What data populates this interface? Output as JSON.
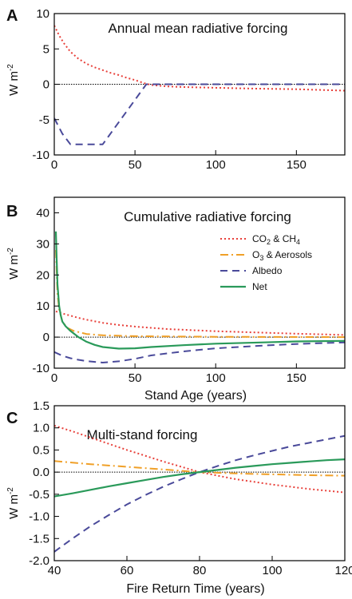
{
  "colors": {
    "co2_ch4": "#e8403a",
    "o3_aerosols": "#f0a028",
    "albedo": "#4a4a9a",
    "net": "#2a9a5a"
  },
  "chart_data": [
    {
      "type": "line",
      "panel_letter": "A",
      "title": "Annual mean radiative forcing",
      "xlabel": "",
      "ylabel": "W m",
      "ylabel_sup": "-2",
      "xlim": [
        0,
        180
      ],
      "ylim": [
        -10,
        10
      ],
      "xticks": [
        0,
        50,
        100,
        150
      ],
      "yticks": [
        -10,
        -5,
        0,
        5,
        10
      ],
      "zero_line": true,
      "series": [
        {
          "key": "co2_ch4",
          "style": "dotted",
          "x": [
            0,
            3,
            6,
            10,
            15,
            20,
            25,
            30,
            35,
            40,
            45,
            50,
            55,
            60,
            70,
            80,
            100,
            120,
            150,
            180
          ],
          "y": [
            8.3,
            6.9,
            5.8,
            4.6,
            3.6,
            2.9,
            2.4,
            2.0,
            1.6,
            1.3,
            0.9,
            0.6,
            0.2,
            -0.1,
            -0.3,
            -0.4,
            -0.5,
            -0.6,
            -0.7,
            -0.9
          ]
        },
        {
          "key": "albedo",
          "style": "dashed",
          "x": [
            0,
            5,
            10,
            30,
            57,
            180
          ],
          "y": [
            -4.8,
            -7.0,
            -8.5,
            -8.5,
            0,
            0
          ]
        }
      ]
    },
    {
      "type": "line",
      "panel_letter": "B",
      "title": "Cumulative radiative forcing",
      "xlabel": "Stand Age (years)",
      "ylabel": "W m",
      "ylabel_sup": "-2",
      "xlim": [
        0,
        180
      ],
      "ylim": [
        -10,
        45
      ],
      "xticks": [
        0,
        50,
        100,
        150
      ],
      "yticks": [
        -10,
        0,
        10,
        20,
        30,
        40
      ],
      "zero_line": true,
      "legend": {
        "placement": "right",
        "entries": [
          {
            "key": "co2_ch4",
            "style": "dotted",
            "label": "CO",
            "sub1": "2",
            "mid": " & CH",
            "sub2": "4"
          },
          {
            "key": "o3_aerosols",
            "style": "dashdot",
            "label": "O",
            "sub1": "3",
            "mid": " & Aerosols",
            "sub2": ""
          },
          {
            "key": "albedo",
            "style": "dashed",
            "label": "Albedo",
            "sub1": "",
            "mid": "",
            "sub2": ""
          },
          {
            "key": "net",
            "style": "solid",
            "label": "Net",
            "sub1": "",
            "mid": "",
            "sub2": ""
          }
        ]
      },
      "series": [
        {
          "key": "co2_ch4",
          "style": "dotted",
          "x": [
            1,
            2,
            4,
            7,
            10,
            15,
            20,
            30,
            40,
            50,
            70,
            100,
            150,
            180
          ],
          "y": [
            8.3,
            8.1,
            7.8,
            7.3,
            6.9,
            6.2,
            5.6,
            4.6,
            3.9,
            3.4,
            2.6,
            1.9,
            1.1,
            0.7
          ]
        },
        {
          "key": "o3_aerosols",
          "style": "dashdot",
          "x": [
            1,
            2,
            3,
            5,
            8,
            12,
            20,
            30,
            50,
            100,
            180
          ],
          "y": [
            28,
            14,
            9,
            5,
            3,
            2,
            1,
            0.6,
            0.3,
            0.1,
            0
          ]
        },
        {
          "key": "albedo",
          "style": "dashed",
          "x": [
            0,
            5,
            10,
            15,
            20,
            30,
            40,
            50,
            60,
            80,
            100,
            130,
            150,
            180
          ],
          "y": [
            -4.8,
            -6.0,
            -6.8,
            -7.3,
            -7.7,
            -8.2,
            -7.8,
            -7.0,
            -5.9,
            -4.6,
            -3.6,
            -2.7,
            -2.2,
            -1.7
          ]
        },
        {
          "key": "net",
          "style": "solid",
          "x": [
            1,
            1.5,
            2,
            3,
            4,
            5,
            7,
            10,
            15,
            20,
            25,
            30,
            40,
            50,
            60,
            80,
            100,
            130,
            150,
            180
          ],
          "y": [
            34,
            25,
            17,
            10,
            7,
            5,
            3.5,
            2,
            0,
            -1.5,
            -2.5,
            -3.2,
            -3.7,
            -3.6,
            -3.2,
            -2.6,
            -2.1,
            -1.7,
            -1.4,
            -1.2
          ]
        }
      ]
    },
    {
      "type": "line",
      "panel_letter": "C",
      "title": "Multi-stand forcing",
      "xlabel": "Fire Return Time (years)",
      "ylabel": "W m",
      "ylabel_sup": "-2",
      "xlim": [
        40,
        120
      ],
      "ylim": [
        -2.0,
        1.5
      ],
      "xticks": [
        40,
        60,
        80,
        100,
        120
      ],
      "yticks": [
        -2.0,
        -1.5,
        -1.0,
        -0.5,
        0.0,
        0.5,
        1.0,
        1.5
      ],
      "ytick_labels": [
        "-2.0",
        "-1.5",
        "-1.0",
        "-0.5",
        "0.0",
        "0.5",
        "1.0",
        "1.5"
      ],
      "zero_line": true,
      "series": [
        {
          "key": "co2_ch4",
          "style": "dotted",
          "x": [
            40,
            45,
            50,
            55,
            60,
            65,
            70,
            75,
            80,
            85,
            90,
            95,
            100,
            105,
            110,
            115,
            120
          ],
          "y": [
            1.05,
            0.92,
            0.78,
            0.64,
            0.5,
            0.37,
            0.24,
            0.12,
            0.0,
            -0.08,
            -0.16,
            -0.22,
            -0.28,
            -0.33,
            -0.38,
            -0.42,
            -0.46
          ]
        },
        {
          "key": "o3_aerosols",
          "style": "dashdot",
          "x": [
            40,
            50,
            60,
            70,
            80,
            90,
            100,
            110,
            120
          ],
          "y": [
            0.25,
            0.18,
            0.12,
            0.06,
            0.0,
            -0.03,
            -0.05,
            -0.07,
            -0.08
          ]
        },
        {
          "key": "albedo",
          "style": "dashed",
          "x": [
            40,
            45,
            50,
            55,
            60,
            65,
            70,
            75,
            80,
            85,
            90,
            95,
            100,
            105,
            110,
            115,
            120
          ],
          "y": [
            -1.8,
            -1.5,
            -1.22,
            -0.97,
            -0.73,
            -0.52,
            -0.33,
            -0.16,
            0.0,
            0.14,
            0.27,
            0.38,
            0.48,
            0.58,
            0.66,
            0.74,
            0.82
          ]
        },
        {
          "key": "net",
          "style": "solid",
          "x": [
            40,
            45,
            50,
            55,
            60,
            65,
            70,
            75,
            80,
            85,
            90,
            95,
            100,
            105,
            110,
            115,
            120
          ],
          "y": [
            -0.55,
            -0.48,
            -0.4,
            -0.32,
            -0.25,
            -0.18,
            -0.11,
            -0.05,
            0.0,
            0.05,
            0.1,
            0.14,
            0.18,
            0.21,
            0.24,
            0.27,
            0.29
          ]
        }
      ]
    }
  ]
}
